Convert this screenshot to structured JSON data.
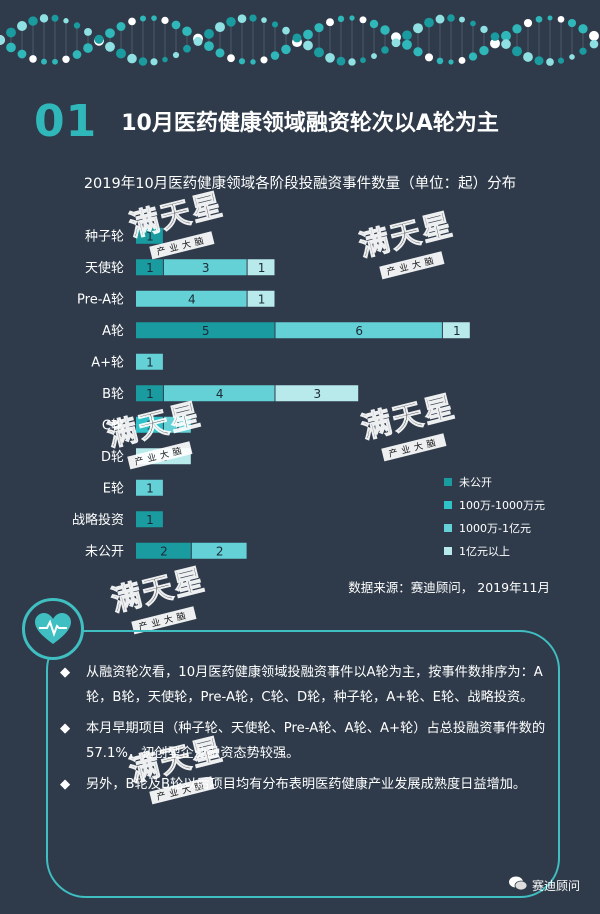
{
  "section": {
    "number": "01",
    "title": "10月医药健康领域融资轮次以A轮为主"
  },
  "colors": {
    "background": "#2f3b4a",
    "accent": "#2fb7ba",
    "undisclosed": "#1a9ba0",
    "m1_10m": "#2fc2c8",
    "m10_100m": "#63d1d5",
    "over100m": "#b8eaec"
  },
  "chart_data": {
    "type": "bar",
    "orientation": "horizontal",
    "stacked": true,
    "title": "2019年10月医药健康领域各阶段投融资事件数量（单位：起）分布",
    "categories": [
      "种子轮",
      "天使轮",
      "Pre-A轮",
      "A轮",
      "A+轮",
      "B轮",
      "C轮",
      "D轮",
      "E轮",
      "战略投资",
      "未公开"
    ],
    "series": [
      {
        "name": "未公开",
        "color": "#1a9ba0",
        "values": [
          1,
          1,
          0,
          5,
          0,
          1,
          0,
          0,
          0,
          1,
          2
        ]
      },
      {
        "name": "100万-1000万元",
        "color": "#2fc2c8",
        "values": [
          0,
          0,
          0,
          0,
          0,
          0,
          1,
          0,
          0,
          0,
          0
        ]
      },
      {
        "name": "1000万-1亿元",
        "color": "#63d1d5",
        "values": [
          0,
          3,
          4,
          6,
          1,
          4,
          1,
          0,
          1,
          0,
          2
        ]
      },
      {
        "name": "1亿元以上",
        "color": "#b8eaec",
        "values": [
          0,
          1,
          1,
          1,
          0,
          3,
          0,
          2,
          0,
          0,
          0
        ]
      }
    ],
    "legend_position": "bottom-right",
    "grid": false
  },
  "source": "数据来源：赛迪顾问，  2019年11月",
  "watermark": {
    "text": "满天星",
    "sub": "产业大脑"
  },
  "icon": "heart-pulse-icon",
  "bullets": [
    "从融资轮次看，10月医药健康领域投融资事件以A轮为主，按事件数排序为：A轮，B轮，天使轮，Pre-A轮，C轮、D轮，种子轮，A+轮、E轮、战略投资。",
    "本月早期项目（种子轮、天使轮、Pre-A轮、A轮、A+轮）占总投融资事件数的57.1%，初创型企业融资态势较强。",
    "另外，B轮及B轮以后项目均有分布表明医药健康产业发展成熟度日益增加。"
  ],
  "footer": {
    "label": "赛迪顾问"
  }
}
